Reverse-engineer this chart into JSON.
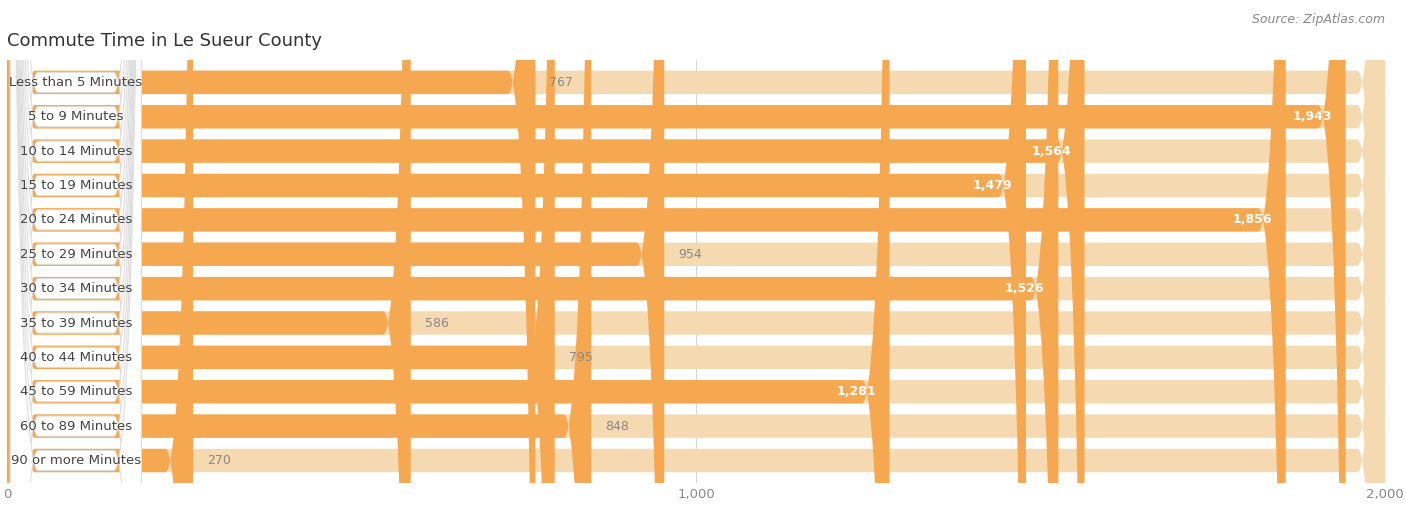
{
  "title": "Commute Time in Le Sueur County",
  "source": "Source: ZipAtlas.com",
  "categories": [
    "Less than 5 Minutes",
    "5 to 9 Minutes",
    "10 to 14 Minutes",
    "15 to 19 Minutes",
    "20 to 24 Minutes",
    "25 to 29 Minutes",
    "30 to 34 Minutes",
    "35 to 39 Minutes",
    "40 to 44 Minutes",
    "45 to 59 Minutes",
    "60 to 89 Minutes",
    "90 or more Minutes"
  ],
  "values": [
    767,
    1943,
    1564,
    1479,
    1856,
    954,
    1526,
    586,
    795,
    1281,
    848,
    270
  ],
  "bar_color": "#F5A850",
  "bar_bg_color": "#F5D9B0",
  "row_bg_color": "#F2F2F2",
  "label_bg_color": "#FFFFFF",
  "background_color": "#FFFFFF",
  "title_color": "#333333",
  "source_color": "#888888",
  "value_color_inside": "#FFFFFF",
  "value_color_outside": "#888888",
  "xlim": [
    0,
    2000
  ],
  "xticks": [
    0,
    1000,
    2000
  ],
  "title_fontsize": 13,
  "label_fontsize": 9.5,
  "value_fontsize": 9,
  "source_fontsize": 9,
  "threshold_inside": 1000
}
